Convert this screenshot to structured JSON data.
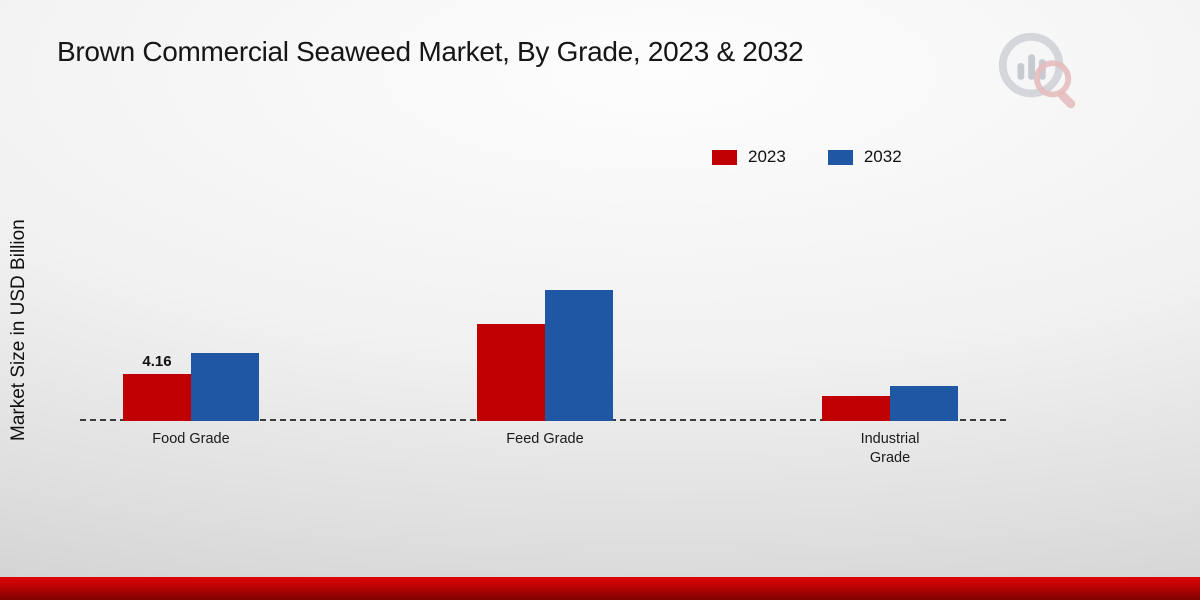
{
  "chart_data": {
    "type": "bar",
    "title": "Brown Commercial Seaweed Market, By Grade, 2023 & 2032",
    "ylabel": "Market Size in USD Billion",
    "categories": [
      "Food Grade",
      "Feed Grade",
      "Industrial Grade"
    ],
    "category_labels": [
      "Food Grade",
      "Feed Grade",
      "Industrial\nGrade"
    ],
    "series": [
      {
        "name": "2023",
        "color": "#c00000",
        "values": [
          4.16,
          8.6,
          2.2
        ]
      },
      {
        "name": "2032",
        "color": "#1f57a4",
        "values": [
          6.0,
          11.6,
          3.1
        ]
      }
    ],
    "annotations": [
      {
        "series": "2023",
        "category": "Food Grade",
        "text": "4.16"
      }
    ],
    "ylim": [
      0,
      13
    ],
    "grid": false,
    "legend_position": "top-right",
    "baseline_style": "dashed"
  },
  "branding": {
    "logo_name": "market-research-future-logo",
    "footer_color": "#b80303"
  }
}
